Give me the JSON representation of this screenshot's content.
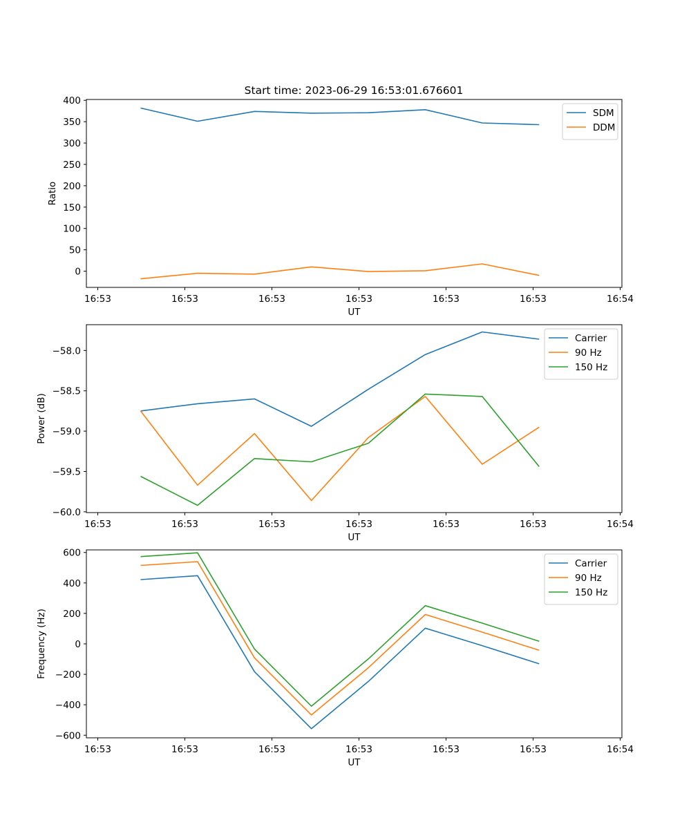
{
  "figure": {
    "title": "Start time: 2023-06-29 16:53:01.676601"
  },
  "chart_data": [
    {
      "type": "line",
      "title": "Start time: 2023-06-29 16:53:01.676601",
      "xlabel": "UT",
      "ylabel": "Ratio",
      "x_tick_labels": [
        "16:53",
        "16:53",
        "16:53",
        "16:53",
        "16:53",
        "16:53",
        "16:54"
      ],
      "y_ticks": [
        0,
        50,
        100,
        150,
        200,
        250,
        300,
        350,
        400
      ],
      "ylim": [
        -38,
        402
      ],
      "legend_position": "top-right",
      "x": [
        1,
        2,
        3,
        4,
        5,
        6,
        7,
        8
      ],
      "series": [
        {
          "name": "SDM",
          "color": "#1f77b4",
          "values": [
            382,
            351,
            374,
            370,
            371,
            378,
            347,
            343
          ]
        },
        {
          "name": "DDM",
          "color": "#ff7f0e",
          "values": [
            -18,
            -5,
            -7,
            10,
            -1,
            1,
            17,
            -10
          ]
        }
      ]
    },
    {
      "type": "line",
      "title": "",
      "xlabel": "UT",
      "ylabel": "Power (dB)",
      "x_tick_labels": [
        "16:53",
        "16:53",
        "16:53",
        "16:53",
        "16:53",
        "16:53",
        "16:54"
      ],
      "y_ticks": [
        -60.0,
        -59.5,
        -59.0,
        -58.5,
        -58.0
      ],
      "y_tick_labels": [
        "−60.0",
        "−59.5",
        "−59.0",
        "−58.5",
        "−58.0"
      ],
      "ylim": [
        -60.01,
        -57.68
      ],
      "legend_position": "top-right",
      "x": [
        1,
        2,
        3,
        4,
        5,
        6,
        7,
        8
      ],
      "series": [
        {
          "name": "Carrier",
          "color": "#1f77b4",
          "values": [
            -58.75,
            -58.66,
            -58.6,
            -58.94,
            -58.48,
            -58.05,
            -57.77,
            -57.86
          ]
        },
        {
          "name": "90 Hz",
          "color": "#ff7f0e",
          "values": [
            -58.75,
            -59.67,
            -59.03,
            -59.86,
            -59.08,
            -58.57,
            -59.41,
            -58.95
          ]
        },
        {
          "name": "150 Hz",
          "color": "#2ca02c",
          "values": [
            -59.56,
            -59.92,
            -59.34,
            -59.38,
            -59.15,
            -58.54,
            -58.57,
            -59.44
          ]
        }
      ]
    },
    {
      "type": "line",
      "title": "",
      "xlabel": "UT",
      "ylabel": "Frequency (Hz)",
      "x_tick_labels": [
        "16:53",
        "16:53",
        "16:53",
        "16:53",
        "16:53",
        "16:53",
        "16:54"
      ],
      "y_ticks": [
        -600,
        -400,
        -200,
        0,
        200,
        400,
        600
      ],
      "y_tick_labels": [
        "−600",
        "−400",
        "−200",
        "0",
        "200",
        "400",
        "600"
      ],
      "ylim": [
        -617,
        617
      ],
      "legend_position": "top-right",
      "x": [
        1,
        2,
        3,
        4,
        5,
        6,
        7,
        8
      ],
      "series": [
        {
          "name": "Carrier",
          "color": "#1f77b4",
          "values": [
            422,
            448,
            -183,
            -557,
            -247,
            103,
            -12,
            -131
          ]
        },
        {
          "name": "90 Hz",
          "color": "#ff7f0e",
          "values": [
            515,
            540,
            -92,
            -467,
            -157,
            193,
            77,
            -42
          ]
        },
        {
          "name": "150 Hz",
          "color": "#2ca02c",
          "values": [
            573,
            598,
            -34,
            -409,
            -99,
            251,
            136,
            17
          ]
        }
      ]
    }
  ]
}
